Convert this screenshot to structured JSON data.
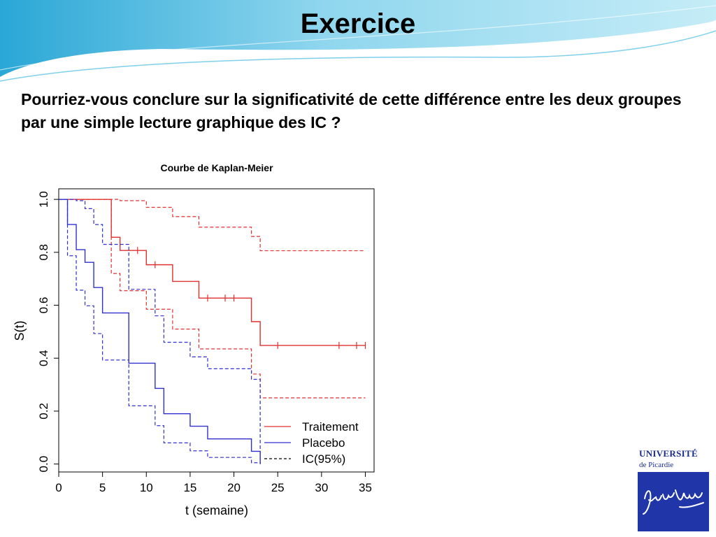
{
  "slide": {
    "title": "Exercice",
    "question": "Pourriez-vous conclure sur la significativité de cette différence entre les deux groupes par une simple lecture graphique des IC ?"
  },
  "logo": {
    "name": "UNIVERSITÉ",
    "subtitle": "de Picardie",
    "signature": "Jules Verne",
    "color": "#1f35a8"
  },
  "chart_data": {
    "type": "line",
    "step": true,
    "title": "Courbe de Kaplan-Meier",
    "xlabel": "t (semaine)",
    "ylabel": "S(t)",
    "xlim": [
      0,
      36
    ],
    "ylim": [
      -0.03,
      1.04
    ],
    "xticks": [
      "0",
      "5",
      "10",
      "15",
      "20",
      "25",
      "30",
      "35"
    ],
    "yticks": [
      "0.0",
      "0.2",
      "0.4",
      "0.6",
      "0.8",
      "1.0"
    ],
    "legend": {
      "position": "bottom-right",
      "entries": [
        "Traitement",
        "Placebo",
        "IC(95%)"
      ]
    },
    "series": [
      {
        "name": "Traitement",
        "color": "#e03030",
        "dash": false,
        "x": [
          0,
          6,
          7,
          10,
          13,
          16,
          22,
          23,
          35
        ],
        "y": [
          1.0,
          0.857,
          0.807,
          0.753,
          0.69,
          0.627,
          0.538,
          0.448,
          0.448
        ],
        "censored": [
          [
            9,
            0.807
          ],
          [
            11,
            0.753
          ],
          [
            17,
            0.627
          ],
          [
            19,
            0.627
          ],
          [
            20,
            0.627
          ],
          [
            25,
            0.448
          ],
          [
            32,
            0.448
          ],
          [
            34,
            0.448
          ],
          [
            35,
            0.448
          ]
        ]
      },
      {
        "name": "Traitement IC inf",
        "color": "#e03030",
        "dash": true,
        "x": [
          0,
          6,
          7,
          10,
          13,
          16,
          22,
          23,
          35
        ],
        "y": [
          1.0,
          0.72,
          0.655,
          0.585,
          0.51,
          0.435,
          0.34,
          0.25,
          0.25
        ]
      },
      {
        "name": "Traitement IC sup",
        "color": "#e03030",
        "dash": true,
        "x": [
          0,
          7,
          10,
          13,
          16,
          22,
          23,
          35
        ],
        "y": [
          1.0,
          0.995,
          0.97,
          0.935,
          0.895,
          0.86,
          0.806,
          0.806
        ]
      },
      {
        "name": "Placebo",
        "color": "#3030d0",
        "dash": false,
        "x": [
          0,
          1,
          2,
          3,
          4,
          5,
          8,
          11,
          12,
          15,
          17,
          22,
          23
        ],
        "y": [
          1.0,
          0.905,
          0.81,
          0.762,
          0.667,
          0.571,
          0.381,
          0.286,
          0.19,
          0.143,
          0.095,
          0.048,
          0.0
        ]
      },
      {
        "name": "Placebo IC inf",
        "color": "#3030d0",
        "dash": true,
        "x": [
          0,
          1,
          2,
          3,
          4,
          5,
          8,
          11,
          12,
          15,
          17,
          22,
          23
        ],
        "y": [
          1.0,
          0.787,
          0.657,
          0.598,
          0.493,
          0.393,
          0.22,
          0.145,
          0.08,
          0.05,
          0.025,
          0.005,
          0.0
        ]
      },
      {
        "name": "Placebo IC sup",
        "color": "#3030d0",
        "dash": true,
        "x": [
          0,
          2,
          3,
          4,
          5,
          8,
          11,
          12,
          15,
          17,
          22,
          23
        ],
        "y": [
          1.0,
          0.995,
          0.965,
          0.905,
          0.83,
          0.66,
          0.56,
          0.46,
          0.405,
          0.36,
          0.32,
          0.0
        ]
      }
    ]
  }
}
